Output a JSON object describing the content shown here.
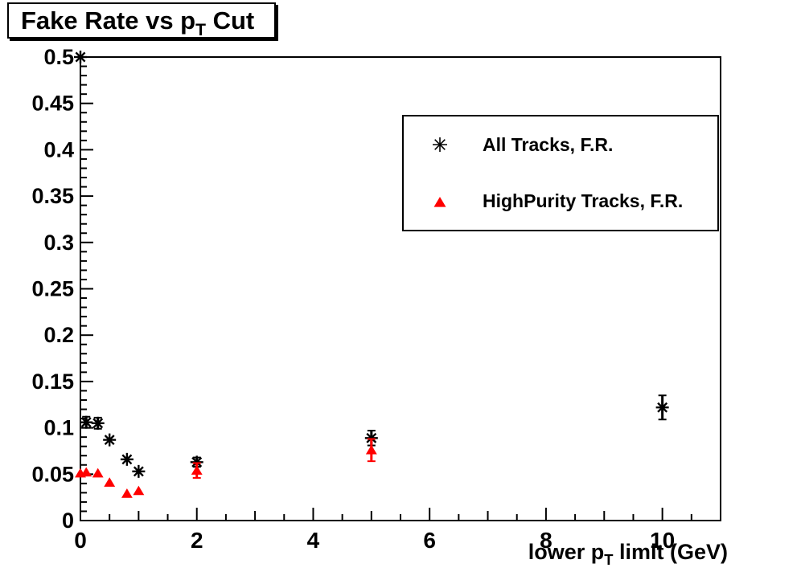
{
  "title": {
    "pre": "Fake Rate vs p",
    "sub": "T",
    "post": " Cut"
  },
  "x_axis_title": {
    "pre": "lower p",
    "sub": "T",
    "post": " limit (GeV)"
  },
  "legend": {
    "entries": [
      {
        "label": "All Tracks, F.R.",
        "marker": "asterisk",
        "color": "#000000"
      },
      {
        "label": "HighPurity Tracks, F.R.",
        "marker": "triangle-up",
        "color": "#ff0000"
      }
    ]
  },
  "colors": {
    "background": "#ffffff",
    "axis": "#000000",
    "all_tracks": "#000000",
    "highpurity_tracks": "#ff0000"
  },
  "chart_data": {
    "type": "scatter",
    "title": "Fake Rate vs pT Cut",
    "xlabel": "lower pT limit (GeV)",
    "ylabel": "",
    "grid": false,
    "legend_position": "top-right",
    "x_axis": {
      "min": 0,
      "max": 11,
      "major_ticks": [
        0,
        2,
        4,
        6,
        8,
        10
      ],
      "major_tick_labels": [
        "0",
        "2",
        "4",
        "6",
        "8",
        "10"
      ],
      "medium_tick_step": 1,
      "minor_tick_step": 0.5
    },
    "y_axis": {
      "min": 0,
      "max": 0.5,
      "major_tick_step": 0.05,
      "major_tick_labels": [
        "0",
        "0.05",
        "0.1",
        "0.15",
        "0.2",
        "0.25",
        "0.3",
        "0.35",
        "0.4",
        "0.45",
        "0.5"
      ],
      "minor_tick_step": 0.01
    },
    "series": [
      {
        "name": "All Tracks, F.R.",
        "marker": "asterisk",
        "color": "#000000",
        "points": [
          {
            "x": 0,
            "y": 0.5,
            "yerr": 0
          },
          {
            "x": 0.1,
            "y": 0.106,
            "yerr": 0.006
          },
          {
            "x": 0.3,
            "y": 0.105,
            "yerr": 0.006
          },
          {
            "x": 0.5,
            "y": 0.087,
            "yerr": 0
          },
          {
            "x": 0.8,
            "y": 0.066,
            "yerr": 0
          },
          {
            "x": 1.0,
            "y": 0.053,
            "yerr": 0
          },
          {
            "x": 2.0,
            "y": 0.063,
            "yerr": 0.005
          },
          {
            "x": 5.0,
            "y": 0.089,
            "yerr": 0.008
          },
          {
            "x": 10.0,
            "y": 0.122,
            "yerr": 0.013
          }
        ]
      },
      {
        "name": "HighPurity Tracks, F.R.",
        "marker": "triangle-up",
        "color": "#ff0000",
        "points": [
          {
            "x": 0,
            "y": 0.051,
            "yerr": 0
          },
          {
            "x": 0.1,
            "y": 0.052,
            "yerr": 0
          },
          {
            "x": 0.3,
            "y": 0.051,
            "yerr": 0
          },
          {
            "x": 0.5,
            "y": 0.041,
            "yerr": 0
          },
          {
            "x": 0.8,
            "y": 0.029,
            "yerr": 0
          },
          {
            "x": 1.0,
            "y": 0.032,
            "yerr": 0
          },
          {
            "x": 2.0,
            "y": 0.054,
            "yerr": 0.008
          },
          {
            "x": 5.0,
            "y": 0.076,
            "yerr": 0.012
          }
        ]
      }
    ]
  }
}
